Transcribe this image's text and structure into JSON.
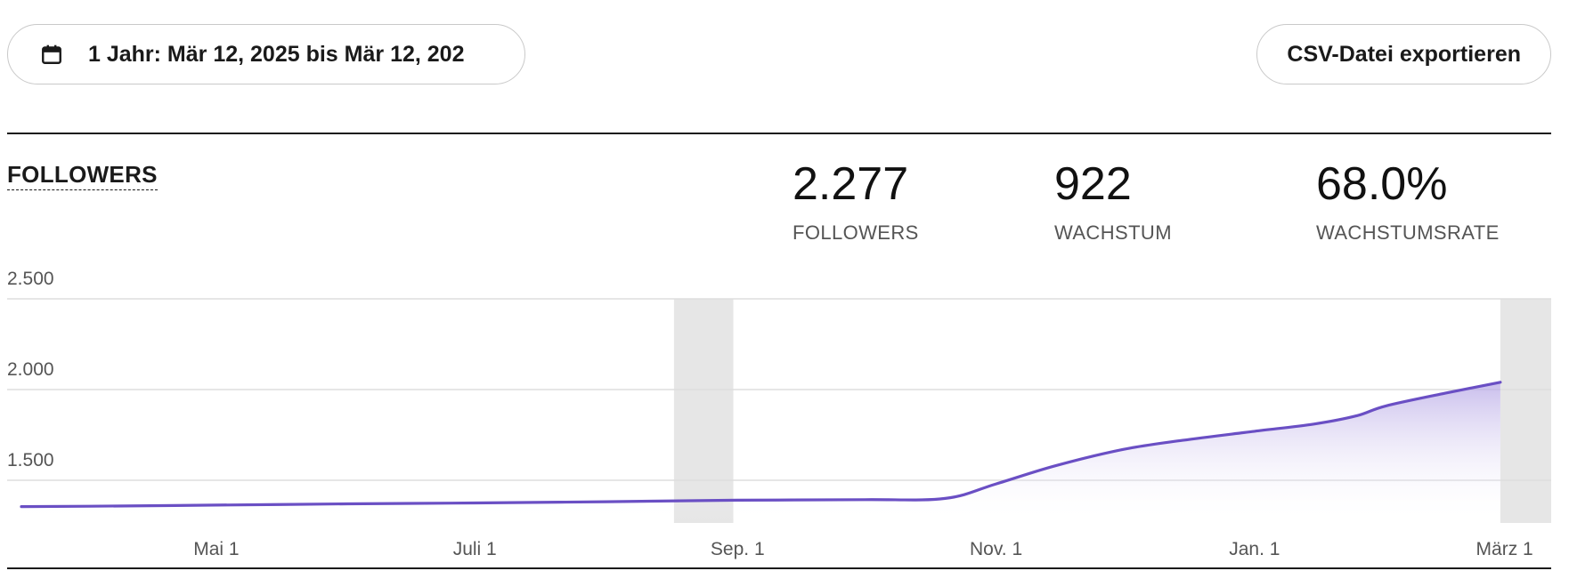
{
  "toolbar": {
    "date_range_label": "1 Jahr: Mär 12, 2025 bis Mär 12, 202",
    "calendar_icon": "calendar-icon",
    "export_label": "CSV-Datei exportieren"
  },
  "section": {
    "title": "FOLLOWERS"
  },
  "stats": {
    "followers": {
      "value": "2.277",
      "label": "FOLLOWERS"
    },
    "growth": {
      "value": "922",
      "label": "WACHSTUM"
    },
    "growth_rate": {
      "value": "68.0%",
      "label": "WACHSTUMSRATE"
    }
  },
  "colors": {
    "line": "#6a4fc4",
    "area_top": "#b7a8e6",
    "highlight": "#e6e6e6",
    "grid": "#dddddd"
  },
  "chart_data": {
    "type": "area",
    "x_start": "2025-03-12",
    "x_end": "2026-03-12",
    "y_ticks": [
      1500,
      2000,
      2500
    ],
    "y_tick_labels": [
      "1.500",
      "2.000",
      "2.500"
    ],
    "ylim": [
      1260,
      2500
    ],
    "x_ticks": [
      "2025-05-01",
      "2025-07-01",
      "2025-09-01",
      "2025-11-01",
      "2026-01-01",
      "2026-03-01"
    ],
    "x_tick_labels": [
      "Mai 1",
      "Juli 1",
      "Sep. 1",
      "Nov. 1",
      "Jan. 1",
      "März 1"
    ],
    "highlight_ranges": [
      [
        "2025-08-17",
        "2025-08-31"
      ],
      [
        "2026-02-28",
        "2026-03-12"
      ]
    ],
    "series": [
      {
        "x": [
          "2025-03-16",
          "2025-04-01",
          "2025-05-01",
          "2025-06-01",
          "2025-07-01",
          "2025-08-01",
          "2025-09-01",
          "2025-10-01",
          "2025-10-20",
          "2025-11-01",
          "2025-11-15",
          "2025-12-01",
          "2025-12-15",
          "2026-01-01",
          "2026-01-15",
          "2026-01-25",
          "2026-02-01",
          "2026-02-15",
          "2026-02-28"
        ],
        "values": [
          1355,
          1357,
          1363,
          1370,
          1375,
          1382,
          1390,
          1393,
          1400,
          1480,
          1580,
          1670,
          1720,
          1770,
          1810,
          1855,
          1910,
          1980,
          2040
        ]
      }
    ]
  }
}
